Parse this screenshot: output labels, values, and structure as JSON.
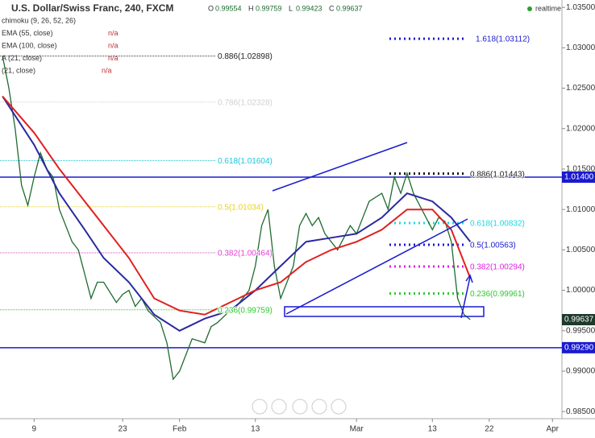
{
  "chart_data": {
    "type": "line",
    "title": "U.S. Dollar/Swiss Franc, 240, FXCM",
    "ohlc": [
      {
        "label": "O",
        "value": "0.99554"
      },
      {
        "label": "H",
        "value": "0.99759"
      },
      {
        "label": "L",
        "value": "0.99423"
      },
      {
        "label": "C",
        "value": "0.99637"
      }
    ],
    "status": "realtime",
    "indicators": [
      {
        "name": "chimoku (9, 26, 52, 26)"
      },
      {
        "name": "EMA (55, close)",
        "value": "n/a"
      },
      {
        "name": "EMA (100, close)",
        "value": "n/a"
      },
      {
        "name": "A (21, close)",
        "value": "n/a"
      },
      {
        "name": "(21, close)",
        "value": "n/a"
      }
    ],
    "xlim": [
      3.6,
      92.5
    ],
    "xticks": [
      {
        "value": 9,
        "label": "9"
      },
      {
        "value": 23,
        "label": "23"
      },
      {
        "value": 32,
        "label": "Feb"
      },
      {
        "value": 44,
        "label": "13"
      },
      {
        "value": 60,
        "label": "Mar"
      },
      {
        "value": 72,
        "label": "13"
      },
      {
        "value": 81,
        "label": "22"
      },
      {
        "value": 91,
        "label": "Apr"
      }
    ],
    "ylim": [
      0.98412,
      1.03591
    ],
    "yticks": [
      {
        "value": 0.985,
        "label": "0.98500"
      },
      {
        "value": 0.99,
        "label": "0.99000"
      },
      {
        "value": 0.995,
        "label": "0.99500"
      },
      {
        "value": 1.0,
        "label": "1.00000"
      },
      {
        "value": 1.005,
        "label": "1.00500"
      },
      {
        "value": 1.01,
        "label": "1.01000"
      },
      {
        "value": 1.015,
        "label": "1.01500"
      },
      {
        "value": 1.02,
        "label": "1.02000"
      },
      {
        "value": 1.025,
        "label": "1.02500"
      },
      {
        "value": 1.03,
        "label": "1.03000"
      },
      {
        "value": 1.035,
        "label": "1.03500"
      }
    ],
    "series": [
      {
        "name": "Price",
        "color": "#1e6b2f",
        "x": [
          4,
          5,
          6,
          7,
          8,
          9,
          10,
          11,
          12,
          13,
          15,
          16,
          17,
          18,
          19,
          20,
          22,
          23,
          24,
          25,
          26,
          27,
          29,
          30,
          31,
          32,
          33,
          34,
          36,
          37,
          38,
          40,
          41,
          43,
          44,
          45,
          46,
          47,
          48,
          50,
          51,
          52,
          53,
          54,
          55,
          57,
          58,
          59,
          60,
          61,
          62,
          64,
          65,
          66,
          67,
          68,
          69,
          71,
          72,
          73,
          74,
          75,
          76,
          77,
          78
        ],
        "values": [
          1.029,
          1.025,
          1.02,
          1.013,
          1.0105,
          1.014,
          1.017,
          1.015,
          1.014,
          1.01,
          1.006,
          1.005,
          1.002,
          0.999,
          1.001,
          1.001,
          0.9985,
          0.9995,
          1.0,
          0.998,
          0.999,
          0.9975,
          0.996,
          0.9935,
          0.989,
          0.99,
          0.992,
          0.994,
          0.9935,
          0.9955,
          0.996,
          0.9975,
          0.998,
          1.0,
          1.003,
          1.008,
          1.01,
          1.003,
          0.999,
          1.003,
          1.008,
          1.0095,
          1.008,
          1.009,
          1.007,
          1.005,
          1.0065,
          1.008,
          1.007,
          1.009,
          1.011,
          1.012,
          1.01,
          1.014,
          1.012,
          1.0145,
          1.012,
          1.009,
          1.0075,
          1.009,
          1.0085,
          1.006,
          0.999,
          0.997,
          0.99637
        ]
      },
      {
        "name": "EMA (55, close)",
        "color": "#2a2aa0",
        "x": [
          4,
          9,
          13,
          17,
          20,
          24,
          28,
          32,
          36,
          40,
          44,
          48,
          52,
          56,
          60,
          64,
          68,
          72,
          75,
          78
        ],
        "values": [
          1.024,
          1.018,
          1.012,
          1.0075,
          1.004,
          1.001,
          0.997,
          0.995,
          0.9965,
          0.9975,
          1.0,
          1.003,
          1.006,
          1.0065,
          1.007,
          1.009,
          1.012,
          1.011,
          1.009,
          1.006
        ]
      },
      {
        "name": "EMA (100, close)",
        "color": "#e02020",
        "x": [
          4,
          9,
          13,
          17,
          20,
          24,
          28,
          32,
          36,
          40,
          44,
          48,
          52,
          56,
          60,
          64,
          68,
          72,
          75,
          78
        ],
        "values": [
          1.024,
          1.0195,
          1.015,
          1.011,
          1.008,
          1.004,
          0.999,
          0.9975,
          0.997,
          0.9985,
          1.0,
          1.001,
          1.0035,
          1.005,
          1.006,
          1.0075,
          1.01,
          1.01,
          1.0075,
          1.0015
        ]
      }
    ],
    "levels": [
      {
        "label": "1.618(1.03112)",
        "value": 1.03112,
        "color": "#1a1ad0"
      },
      {
        "label": "0.886(1.02898)",
        "value": 1.02898,
        "color": "#333333"
      },
      {
        "label": "0.786(1.02328)",
        "value": 1.02328,
        "color": "#d0d0d0"
      },
      {
        "label": "0.618(1.01604)",
        "value": 1.01604,
        "color": "#19c6d8"
      },
      {
        "label": "0.5(1.01034)",
        "value": 1.01034,
        "color": "#e8d21a"
      },
      {
        "label": "0.382(1.00464)",
        "value": 1.00464,
        "color": "#e040d0"
      },
      {
        "label": "0.236(0.99759)",
        "value": 0.99759,
        "color": "#2ec82e"
      },
      {
        "label": "0.886(1.01443)",
        "value": 1.01443,
        "color": "#111111"
      },
      {
        "label": "0.618(1.00832)",
        "value": 1.00832,
        "color": "#19d8e0"
      },
      {
        "label": "0.5(1.00563)",
        "value": 1.00563,
        "color": "#1a1ad0"
      },
      {
        "label": "0.382(1.00294)",
        "value": 1.00294,
        "color": "#e020e0"
      },
      {
        "label": "0.236(0.99961)",
        "value": 0.99961,
        "color": "#2ec82e"
      }
    ],
    "price_lines": [
      {
        "label": "1.01400",
        "value": 1.014,
        "color": "#1a1ad0"
      },
      {
        "label": "0.99290",
        "value": 0.9929,
        "color": "#1a1ad0"
      },
      {
        "label": "0.99637",
        "value": 0.99637,
        "color": "#1e3a2a"
      }
    ]
  }
}
